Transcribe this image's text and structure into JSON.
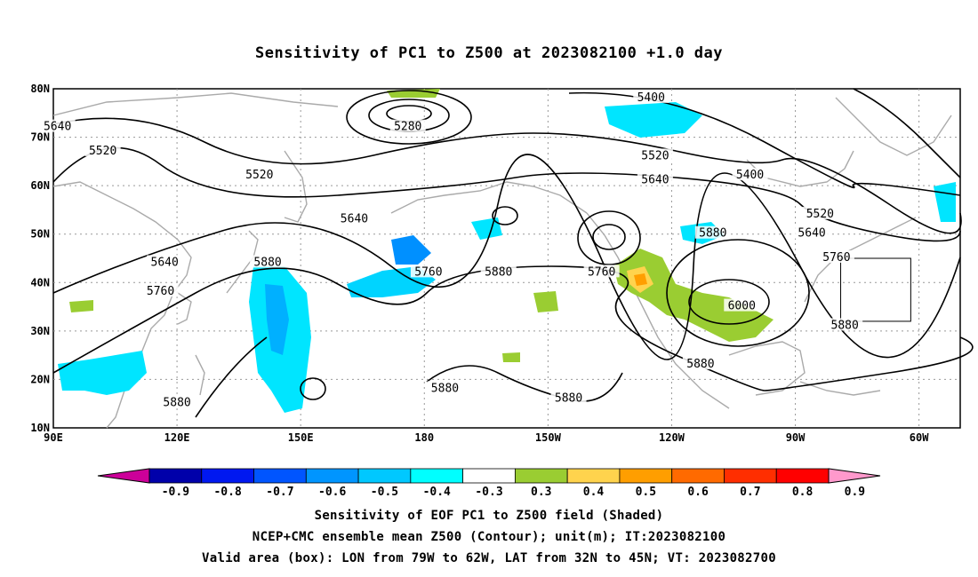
{
  "title": "Sensitivity of PC1 to Z500 at 2023082100 +1.0 day",
  "axes": {
    "lat_labels": [
      "80N",
      "70N",
      "60N",
      "50N",
      "40N",
      "30N",
      "20N",
      "10N"
    ],
    "lon_labels": [
      "90E",
      "120E",
      "150E",
      "180",
      "150W",
      "120W",
      "90W",
      "60W"
    ]
  },
  "contours": [
    {
      "label": "5640",
      "lon": 91,
      "lat": 72
    },
    {
      "label": "5520",
      "lon": 102,
      "lat": 67
    },
    {
      "label": "5280",
      "lon": 176,
      "lat": 72
    },
    {
      "label": "5400",
      "lon": 235,
      "lat": 78
    },
    {
      "label": "5520",
      "lon": 140,
      "lat": 62
    },
    {
      "label": "5520",
      "lon": 236,
      "lat": 66
    },
    {
      "label": "5640",
      "lon": 236,
      "lat": 61
    },
    {
      "label": "5400",
      "lon": 259,
      "lat": 62
    },
    {
      "label": "5640",
      "lon": 163,
      "lat": 53
    },
    {
      "label": "5520",
      "lon": 276,
      "lat": 54
    },
    {
      "label": "5640",
      "lon": 274,
      "lat": 50
    },
    {
      "label": "5880",
      "lon": 142,
      "lat": 44
    },
    {
      "label": "5640",
      "lon": 117,
      "lat": 44
    },
    {
      "label": "5760",
      "lon": 116,
      "lat": 38
    },
    {
      "label": "5760",
      "lon": 181,
      "lat": 42
    },
    {
      "label": "5880",
      "lon": 198,
      "lat": 42
    },
    {
      "label": "5760",
      "lon": 223,
      "lat": 42
    },
    {
      "label": "5880",
      "lon": 250,
      "lat": 50
    },
    {
      "label": "5760",
      "lon": 280,
      "lat": 45
    },
    {
      "label": "6000",
      "lon": 257,
      "lat": 35
    },
    {
      "label": "5880",
      "lon": 282,
      "lat": 31
    },
    {
      "label": "5880",
      "lon": 247,
      "lat": 23
    },
    {
      "label": "5880",
      "lon": 185,
      "lat": 18
    },
    {
      "label": "5880",
      "lon": 215,
      "lat": 16
    },
    {
      "label": "5880",
      "lon": 120,
      "lat": 15
    }
  ],
  "validation_box": {
    "lon_w": 281,
    "lon_e": 298,
    "lat_s": 32,
    "lat_n": 45
  },
  "colorbar": {
    "labels": [
      "-0.9",
      "-0.8",
      "-0.7",
      "-0.6",
      "-0.5",
      "-0.4",
      "-0.3",
      "0.3",
      "0.4",
      "0.5",
      "0.6",
      "0.7",
      "0.8",
      "0.9"
    ],
    "colors": [
      "#0000aa",
      "#0018f0",
      "#0055ff",
      "#0095ff",
      "#00c8ff",
      "#00ffff",
      "#ffffff",
      "#9acd32",
      "#ffd34d",
      "#ff9e00",
      "#ff6a00",
      "#ff2e00",
      "#ff0000"
    ],
    "left_tip": "#cc0099",
    "right_tip": "#ff99cc"
  },
  "captions": [
    "Sensitivity of EOF PC1 to Z500 field (Shaded)",
    "NCEP+CMC ensemble mean Z500 (Contour); unit(m); IT:2023082100",
    "Valid area (box): LON from 79W to 62W, LAT from 32N to 45N; VT: 2023082700"
  ]
}
